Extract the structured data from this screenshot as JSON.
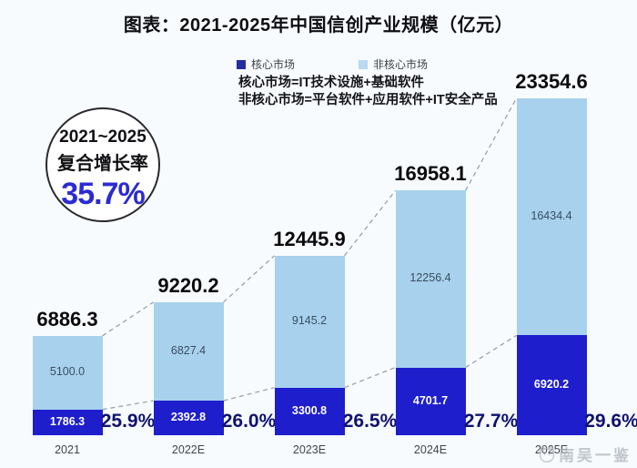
{
  "title": "图表：2021-2025年中国信创产业规模（亿元）",
  "legend": {
    "core_label": "核心市场",
    "noncore_label": "非核心市场"
  },
  "notes": {
    "line1": "核心市场=IT技术设施+基础软件",
    "line2": "非核心市场=平台软件+应用软件+IT安全产品"
  },
  "badge": {
    "period": "2021~2025",
    "label": "复合增长率",
    "value": "35.7%"
  },
  "watermark": {
    "icon": "cat-face-icon",
    "text": "南吴一鉴"
  },
  "colors": {
    "background": "#f8fbfe",
    "core_bar": "#1e1ecd",
    "noncore_bar": "#a7d1ed",
    "legend_core_swatch": "#272c9e",
    "legend_noncore_swatch": "#b7d9f2",
    "badge_value": "#2b2bd2",
    "growth_text": "#10126e",
    "connector": "#9aa1a8"
  },
  "chart_data": {
    "type": "bar",
    "stacked": true,
    "title": "图表：2021-2025年中国信创产业规模（亿元）",
    "unit": "亿元",
    "categories": [
      "2021",
      "2022E",
      "2023E",
      "2024E",
      "2025E"
    ],
    "series": [
      {
        "name": "核心市场",
        "color": "#1e1ecd",
        "values": [
          1786.3,
          2392.8,
          3300.8,
          4701.7,
          6920.2
        ]
      },
      {
        "name": "非核心市场",
        "color": "#a7d1ed",
        "values": [
          5100.0,
          6827.4,
          9145.2,
          12256.4,
          16434.4
        ]
      }
    ],
    "totals": [
      6886.3,
      9220.2,
      12445.9,
      16958.1,
      23354.6
    ],
    "growth_labels": [
      "25.9%",
      "26.0%",
      "26.5%",
      "27.7%",
      "29.6%"
    ],
    "cagr": "35.7%",
    "ylim": [
      0,
      23354.6
    ],
    "grid": false,
    "legend_position": "top",
    "annotations": "dashed connector lines join consecutive bar tops and core-segment tops"
  }
}
